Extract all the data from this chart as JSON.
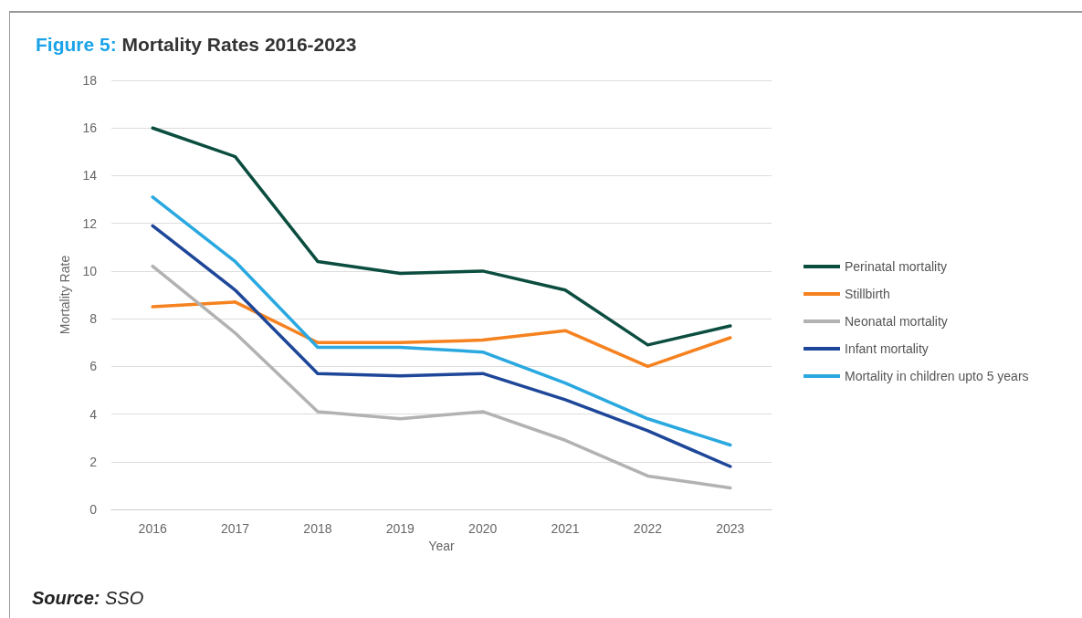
{
  "chart_data": {
    "type": "line",
    "title": "Figure 5: Mortality Rates 2016-2023",
    "xlabel": "Year",
    "ylabel": "Mortality Rate",
    "categories": [
      "2016",
      "2017",
      "2018",
      "2019",
      "2020",
      "2021",
      "2022",
      "2023"
    ],
    "series": [
      {
        "name": "Perinatal mortality",
        "color": "#0b4d3f",
        "values": [
          16.0,
          14.8,
          10.4,
          9.9,
          10.0,
          9.2,
          6.9,
          7.7
        ]
      },
      {
        "name": "Stillbirth",
        "color": "#f5821f",
        "values": [
          8.5,
          8.7,
          7.0,
          7.0,
          7.1,
          7.5,
          6.0,
          7.2
        ]
      },
      {
        "name": "Neonatal mortality",
        "color": "#b2b2b2",
        "values": [
          10.2,
          7.4,
          4.1,
          3.8,
          4.1,
          2.9,
          1.4,
          0.9
        ]
      },
      {
        "name": "Infant mortality",
        "color": "#1e4799",
        "values": [
          11.9,
          9.2,
          5.7,
          5.6,
          5.7,
          4.6,
          3.3,
          1.8
        ]
      },
      {
        "name": "Mortality in children upto 5 years",
        "color": "#2aa8e0",
        "values": [
          13.1,
          10.4,
          6.8,
          6.8,
          6.6,
          5.3,
          3.8,
          2.7
        ]
      }
    ],
    "ylim": [
      0,
      18
    ],
    "yticks": [
      0,
      2,
      4,
      6,
      8,
      10,
      12,
      14,
      16,
      18
    ],
    "grid": "y",
    "legend": "right",
    "marker": "none",
    "line_style": "solid",
    "annotations": [
      "Source: SSO"
    ]
  }
}
